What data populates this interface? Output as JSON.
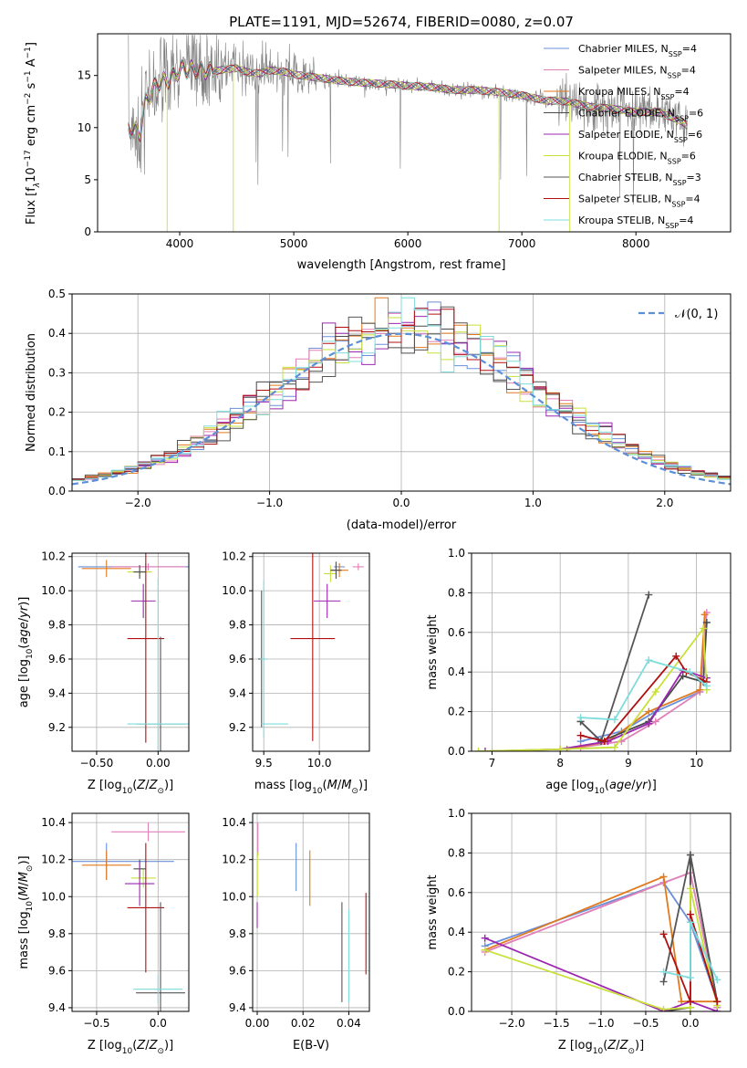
{
  "title": "PLATE=1191, MJD=52674, FIBERID=0080, z=0.07",
  "colors": {
    "Chabrier MILES": "#6a8fd8",
    "Salpeter MILES": "#e07fb8",
    "Kroupa MILES": "#e07a1e",
    "Chabrier ELODIE": "#4a4a4a",
    "Salpeter ELODIE": "#9b27b0",
    "Kroupa ELODIE": "#c9e03a",
    "Chabrier STELIB": "#555555",
    "Salpeter STELIB": "#b01010",
    "Kroupa STELIB": "#7ddcdc",
    "data": "#808080",
    "normal": "#5b8fd6"
  },
  "chart_data": [
    {
      "id": "spectrum",
      "type": "line",
      "title": "PLATE=1191, MJD=52674, FIBERID=0080, z=0.07",
      "xlabel": "wavelength [Angstrom, rest frame]",
      "ylabel": "Flux [f",
      "xlim": [
        3280,
        8830
      ],
      "ylim": [
        0,
        19
      ],
      "xticks": [
        4000,
        5000,
        6000,
        7000,
        8000
      ],
      "yticks": [
        0,
        5,
        10,
        15
      ],
      "grid": false,
      "legend_position": "top-right",
      "legend": [
        {
          "base": "Chabrier MILES, N",
          "n": "4"
        },
        {
          "base": "Salpeter MILES, N",
          "n": "4"
        },
        {
          "base": "Kroupa MILES, N",
          "n": "4"
        },
        {
          "base": "Chabrier ELODIE, N",
          "n": "6"
        },
        {
          "base": "Salpeter ELODIE, N",
          "n": "6"
        },
        {
          "base": "Kroupa ELODIE, N",
          "n": "6"
        },
        {
          "base": "Chabrier STELIB, N",
          "n": "3"
        },
        {
          "base": "Salpeter STELIB, N",
          "n": "4"
        },
        {
          "base": "Kroupa STELIB, N",
          "n": "4"
        }
      ],
      "continuum": [
        [
          3550,
          10
        ],
        [
          3650,
          9.5
        ],
        [
          3700,
          12.5
        ],
        [
          3800,
          14.2
        ],
        [
          3900,
          14.6
        ],
        [
          4000,
          15.5
        ],
        [
          4100,
          15.6
        ],
        [
          4200,
          15.5
        ],
        [
          4300,
          15.4
        ],
        [
          4400,
          15.6
        ],
        [
          4500,
          15.7
        ],
        [
          4600,
          15.3
        ],
        [
          4700,
          15.2
        ],
        [
          4800,
          15.5
        ],
        [
          4900,
          15.4
        ],
        [
          5000,
          15.1
        ],
        [
          5200,
          14.8
        ],
        [
          5400,
          14.5
        ],
        [
          5600,
          14.3
        ],
        [
          5800,
          14.2
        ],
        [
          6000,
          14.0
        ],
        [
          6200,
          13.9
        ],
        [
          6400,
          13.6
        ],
        [
          6600,
          13.6
        ],
        [
          6800,
          13.4
        ],
        [
          7000,
          13.1
        ],
        [
          7200,
          12.6
        ],
        [
          7400,
          12.5
        ],
        [
          7600,
          12.0
        ],
        [
          7800,
          11.8
        ],
        [
          8000,
          11.5
        ],
        [
          8200,
          11.5
        ],
        [
          8400,
          10.6
        ],
        [
          8450,
          10.2
        ]
      ]
    },
    {
      "id": "residuals",
      "type": "bar",
      "xlabel": "(data-model)/error",
      "ylabel": "Normed distribution",
      "xlim": [
        -2.5,
        2.5
      ],
      "ylim": [
        0,
        0.5
      ],
      "xticks": [
        -2,
        -1,
        0,
        1,
        2
      ],
      "yticks": [
        0.0,
        0.1,
        0.2,
        0.3,
        0.4,
        0.5
      ],
      "grid": true,
      "legend": "𝒩(0, 1)",
      "legend_position": "top-right",
      "bin_width": 0.1
    },
    {
      "id": "age-vs-Z",
      "type": "scatter",
      "xlabel": "Z [log",
      "ylabel": "age  [log",
      "xlim": [
        -0.7,
        0.25
      ],
      "ylim": [
        9.06,
        10.22
      ],
      "xticks": [
        -0.5,
        0.0
      ],
      "yticks": [
        9.2,
        9.4,
        9.6,
        9.8,
        10.0,
        10.2
      ],
      "grid": true,
      "points": [
        {
          "series": "Chabrier MILES",
          "x": -0.1,
          "xerr": 0.55,
          "y": 10.14,
          "yerr": 0.02
        },
        {
          "series": "Salpeter MILES",
          "x": -0.08,
          "xerr": 0.3,
          "y": 10.14,
          "yerr": 0.02
        },
        {
          "series": "Kroupa MILES",
          "x": -0.42,
          "xerr": 0.2,
          "y": 10.13,
          "yerr": 0.05
        },
        {
          "series": "Kroupa ELODIE",
          "x": -0.15,
          "xerr": 0.1,
          "y": 10.11,
          "yerr": 0.03
        },
        {
          "series": "Chabrier ELODIE",
          "x": -0.15,
          "xerr": 0.05,
          "y": 10.11,
          "yerr": 0.04
        },
        {
          "series": "Salpeter ELODIE",
          "x": -0.12,
          "xerr": 0.1,
          "y": 9.94,
          "yerr": 0.1
        },
        {
          "series": "Salpeter STELIB",
          "x": -0.1,
          "xerr": 0.15,
          "y": 9.72,
          "yerr": 0.61
        },
        {
          "series": "Chabrier STELIB",
          "x": 0.02,
          "xerr": 0.2,
          "y": 9.22,
          "yerr": 0.51
        },
        {
          "series": "Kroupa STELIB",
          "x": 0.0,
          "xerr": 0.25,
          "y": 9.22,
          "yerr": 0.85
        }
      ]
    },
    {
      "id": "age-vs-mass",
      "type": "scatter",
      "xlabel": "mass [log",
      "ylabel": "",
      "xlim": [
        9.4,
        10.45
      ],
      "ylim": [
        9.06,
        10.22
      ],
      "xticks": [
        9.5,
        10.0
      ],
      "yticks": [
        9.2,
        9.4,
        9.6,
        9.8,
        10.0,
        10.2
      ],
      "grid": true,
      "points": [
        {
          "series": "Chabrier MILES",
          "x": 10.18,
          "xerr": 0.05,
          "y": 10.14,
          "yerr": 0.02
        },
        {
          "series": "Salpeter MILES",
          "x": 10.35,
          "xerr": 0.05,
          "y": 10.14,
          "yerr": 0.02
        },
        {
          "series": "Kroupa MILES",
          "x": 10.18,
          "xerr": 0.08,
          "y": 10.12,
          "yerr": 0.04
        },
        {
          "series": "Kroupa ELODIE",
          "x": 10.1,
          "xerr": 0.06,
          "y": 10.1,
          "yerr": 0.05
        },
        {
          "series": "Chabrier ELODIE",
          "x": 10.15,
          "xerr": 0.05,
          "y": 10.12,
          "yerr": 0.05
        },
        {
          "series": "Salpeter ELODIE",
          "x": 10.07,
          "xerr": 0.12,
          "y": 9.94,
          "yerr": 0.1
        },
        {
          "series": "Salpeter STELIB",
          "x": 9.94,
          "xerr": 0.2,
          "y": 9.72,
          "yerr": 0.6
        },
        {
          "series": "Chabrier STELIB",
          "x": 9.48,
          "xerr": 0.03,
          "y": 9.6,
          "yerr": 0.4
        },
        {
          "series": "Kroupa STELIB",
          "x": 9.5,
          "xerr": 0.03,
          "y": 9.6,
          "yerr": 0.46
        },
        {
          "series": "Kroupa STELIB",
          "x": 9.6,
          "xerr": 0.12,
          "y": 9.22,
          "yerr": 0.0
        }
      ]
    },
    {
      "id": "weight-vs-age",
      "type": "line",
      "xlabel": "age  [log",
      "ylabel": "mass weight",
      "xlim": [
        6.7,
        10.5
      ],
      "ylim": [
        0,
        1
      ],
      "xticks": [
        7,
        8,
        9,
        10
      ],
      "yticks": [
        0.0,
        0.2,
        0.4,
        0.6,
        0.8,
        1.0
      ],
      "grid": true,
      "series": [
        {
          "name": "Chabrier MILES",
          "x": [
            8.3,
            8.9,
            9.4,
            10.05,
            10.15
          ],
          "y": [
            0.05,
            0.1,
            0.2,
            0.3,
            0.65
          ]
        },
        {
          "name": "Salpeter MILES",
          "x": [
            8.3,
            8.9,
            9.4,
            10.05,
            10.15
          ],
          "y": [
            0.02,
            0.05,
            0.15,
            0.3,
            0.7
          ]
        },
        {
          "name": "Kroupa MILES",
          "x": [
            8.1,
            8.7,
            9.3,
            10.05,
            10.12
          ],
          "y": [
            0.01,
            0.05,
            0.2,
            0.31,
            0.69
          ]
        },
        {
          "name": "Chabrier ELODIE",
          "x": [
            8.3,
            8.6,
            9.3,
            9.8,
            10.1,
            10.15
          ],
          "y": [
            0.15,
            0.05,
            0.15,
            0.38,
            0.35,
            0.65
          ]
        },
        {
          "name": "Salpeter ELODIE",
          "x": [
            6.9,
            8.0,
            8.7,
            9.3,
            9.8,
            10.15
          ],
          "y": [
            0.0,
            0.01,
            0.05,
            0.14,
            0.41,
            0.37
          ]
        },
        {
          "name": "Kroupa ELODIE",
          "x": [
            6.8,
            8.0,
            8.8,
            9.4,
            10.1,
            10.15
          ],
          "y": [
            0.0,
            0.01,
            0.02,
            0.3,
            0.62,
            0.31
          ]
        },
        {
          "name": "Chabrier STELIB",
          "x": [
            8.3,
            8.6,
            9.3
          ],
          "y": [
            0.15,
            0.05,
            0.79
          ]
        },
        {
          "name": "Salpeter STELIB",
          "x": [
            8.3,
            8.65,
            9.7,
            9.85,
            10.15
          ],
          "y": [
            0.08,
            0.05,
            0.48,
            0.4,
            0.35
          ]
        },
        {
          "name": "Kroupa STELIB",
          "x": [
            8.3,
            8.8,
            9.3,
            9.9,
            10.15
          ],
          "y": [
            0.17,
            0.16,
            0.46,
            0.4,
            0.33
          ]
        }
      ]
    },
    {
      "id": "mass-vs-Z",
      "type": "scatter",
      "xlabel": "Z [log",
      "ylabel": "mass [log",
      "xlim": [
        -0.7,
        0.25
      ],
      "ylim": [
        9.38,
        10.45
      ],
      "xticks": [
        -0.5,
        0.0
      ],
      "yticks": [
        9.4,
        9.6,
        9.8,
        10.0,
        10.2,
        10.4
      ],
      "grid": true,
      "points": [
        {
          "series": "Chabrier MILES",
          "x": -0.42,
          "xerr": 0.55,
          "y": 10.19,
          "yerr": 0.1
        },
        {
          "series": "Salpeter MILES",
          "x": -0.08,
          "xerr": 0.3,
          "y": 10.35,
          "yerr": 0.05
        },
        {
          "series": "Kroupa MILES",
          "x": -0.42,
          "xerr": 0.2,
          "y": 10.17,
          "yerr": 0.08
        },
        {
          "series": "Kroupa ELODIE",
          "x": -0.12,
          "xerr": 0.1,
          "y": 10.1,
          "yerr": 0.05
        },
        {
          "series": "Chabrier ELODIE",
          "x": -0.15,
          "xerr": 0.05,
          "y": 10.15,
          "yerr": 0.05
        },
        {
          "series": "Salpeter ELODIE",
          "x": -0.15,
          "xerr": 0.12,
          "y": 10.07,
          "yerr": 0.12
        },
        {
          "series": "Salpeter STELIB",
          "x": -0.1,
          "xerr": 0.15,
          "y": 9.94,
          "yerr": 0.35
        },
        {
          "series": "Chabrier STELIB",
          "x": 0.02,
          "xerr": 0.2,
          "y": 9.48,
          "yerr": 0.49
        },
        {
          "series": "Kroupa STELIB",
          "x": 0.0,
          "xerr": 0.2,
          "y": 9.5,
          "yerr": 0.08
        }
      ]
    },
    {
      "id": "mass-vs-ebv",
      "type": "scatter",
      "xlabel": "E(B-V)",
      "ylabel": "",
      "xlim": [
        -0.002,
        0.049
      ],
      "ylim": [
        9.38,
        10.45
      ],
      "xticks": [
        0.0,
        0.02,
        0.04
      ],
      "yticks": [
        9.4,
        9.6,
        9.8,
        10.0,
        10.2,
        10.4
      ],
      "grid": true,
      "points": [
        {
          "series": "Chabrier MILES",
          "x": 0.017,
          "xerr": 0.0,
          "y": 10.16,
          "yerr": 0.13
        },
        {
          "series": "Salpeter MILES",
          "x": 0.0003,
          "xerr": 0.0,
          "y": 10.31,
          "yerr": 0.09
        },
        {
          "series": "Kroupa MILES",
          "x": 0.023,
          "xerr": 0.0,
          "y": 10.1,
          "yerr": 0.15
        },
        {
          "series": "Kroupa ELODIE",
          "x": 0.0001,
          "xerr": 0.0,
          "y": 10.12,
          "yerr": 0.12
        },
        {
          "series": "Salpeter ELODIE",
          "x": 0.0,
          "xerr": 0.0,
          "y": 9.9,
          "yerr": 0.07
        },
        {
          "series": "Chabrier STELIB",
          "x": 0.037,
          "xerr": 0.0,
          "y": 9.7,
          "yerr": 0.27
        },
        {
          "series": "Kroupa STELIB",
          "x": 0.04,
          "xerr": 0.0,
          "y": 9.68,
          "yerr": 0.25
        },
        {
          "series": "Salpeter STELIB",
          "x": 0.0475,
          "xerr": 0.0,
          "y": 9.8,
          "yerr": 0.22
        }
      ]
    },
    {
      "id": "weight-vs-Z",
      "type": "line",
      "xlabel": "Z [log",
      "ylabel": "mass weight",
      "xlim": [
        -2.45,
        0.45
      ],
      "ylim": [
        0,
        1
      ],
      "xticks": [
        -2.0,
        -1.5,
        -1.0,
        -0.5,
        0.0
      ],
      "yticks": [
        0.0,
        0.2,
        0.4,
        0.6,
        0.8,
        1.0
      ],
      "grid": true,
      "series": [
        {
          "name": "Chabrier MILES",
          "x": [
            -2.3,
            -0.3,
            0.0,
            0.3,
            0.3
          ],
          "y": [
            0.33,
            0.65,
            0.45,
            0.05,
            0.02
          ]
        },
        {
          "name": "Salpeter MILES",
          "x": [
            -2.3,
            -0.3,
            0.0,
            0.3,
            0.3
          ],
          "y": [
            0.3,
            0.65,
            0.7,
            0.05,
            0.02
          ]
        },
        {
          "name": "Kroupa MILES",
          "x": [
            -2.3,
            -0.3,
            -0.1,
            0.3
          ],
          "y": [
            0.31,
            0.68,
            0.05,
            0.05
          ]
        },
        {
          "name": "Chabrier ELODIE",
          "x": [
            -0.3,
            0.0,
            0.0,
            0.3
          ],
          "y": [
            0.0,
            0.02,
            0.79,
            0.05
          ]
        },
        {
          "name": "Salpeter ELODIE",
          "x": [
            -2.3,
            -0.3,
            0.0,
            0.3
          ],
          "y": [
            0.37,
            0.0,
            0.05,
            0.0
          ]
        },
        {
          "name": "Kroupa ELODIE",
          "x": [
            -2.3,
            -0.3,
            0.0,
            0.0,
            0.3
          ],
          "y": [
            0.31,
            0.01,
            0.02,
            0.62,
            0.03
          ]
        },
        {
          "name": "Chabrier STELIB",
          "x": [
            -0.3,
            0.0,
            0.3
          ],
          "y": [
            0.15,
            0.79,
            0.05
          ]
        },
        {
          "name": "Salpeter STELIB",
          "x": [
            -0.3,
            0.0,
            0.0,
            0.3
          ],
          "y": [
            0.39,
            0.05,
            0.49,
            0.05
          ]
        },
        {
          "name": "Kroupa STELIB",
          "x": [
            -0.3,
            0.0,
            0.0,
            0.3
          ],
          "y": [
            0.2,
            0.17,
            0.45,
            0.16
          ]
        }
      ]
    }
  ],
  "series_order": [
    "Chabrier MILES",
    "Salpeter MILES",
    "Kroupa MILES",
    "Chabrier ELODIE",
    "Salpeter ELODIE",
    "Kroupa ELODIE",
    "Chabrier STELIB",
    "Salpeter STELIB",
    "Kroupa STELIB"
  ]
}
